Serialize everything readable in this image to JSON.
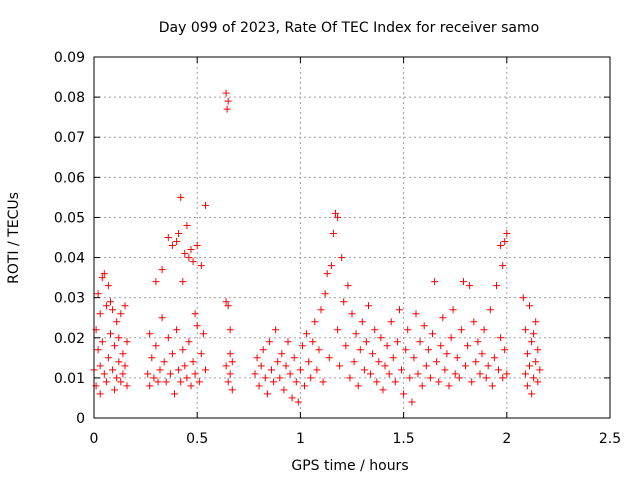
{
  "chart_data": {
    "type": "scatter",
    "title": "Day 099 of 2023, Rate Of TEC Index for receiver samo",
    "xlabel": "GPS time / hours",
    "ylabel": "ROTI / TECUs",
    "xlim": [
      0,
      2.5
    ],
    "ylim": [
      0,
      0.09
    ],
    "xticks": [
      0,
      0.5,
      1,
      1.5,
      2,
      2.5
    ],
    "xtick_labels": [
      "0",
      "0.5",
      "1",
      "1.5",
      "2",
      "2.5"
    ],
    "yticks": [
      0,
      0.01,
      0.02,
      0.03,
      0.04,
      0.05,
      0.06,
      0.07,
      0.08,
      0.09
    ],
    "ytick_labels": [
      "0",
      "0.01",
      "0.02",
      "0.03",
      "0.04",
      "0.05",
      "0.06",
      "0.07",
      "0.08",
      "0.09"
    ],
    "grid": true,
    "marker": "+",
    "color": "#ff0000",
    "series": [
      {
        "name": "",
        "points": [
          [
            0.0,
            0.012
          ],
          [
            0.01,
            0.022
          ],
          [
            0.01,
            0.008
          ],
          [
            0.02,
            0.017
          ],
          [
            0.02,
            0.031
          ],
          [
            0.03,
            0.013
          ],
          [
            0.03,
            0.026
          ],
          [
            0.03,
            0.006
          ],
          [
            0.04,
            0.035
          ],
          [
            0.04,
            0.019
          ],
          [
            0.05,
            0.011
          ],
          [
            0.05,
            0.036
          ],
          [
            0.06,
            0.028
          ],
          [
            0.06,
            0.009
          ],
          [
            0.07,
            0.033
          ],
          [
            0.07,
            0.015
          ],
          [
            0.08,
            0.029
          ],
          [
            0.08,
            0.021
          ],
          [
            0.09,
            0.012
          ],
          [
            0.09,
            0.027
          ],
          [
            0.1,
            0.007
          ],
          [
            0.1,
            0.018
          ],
          [
            0.11,
            0.024
          ],
          [
            0.11,
            0.01
          ],
          [
            0.12,
            0.014
          ],
          [
            0.12,
            0.02
          ],
          [
            0.13,
            0.026
          ],
          [
            0.13,
            0.009
          ],
          [
            0.14,
            0.016
          ],
          [
            0.14,
            0.011
          ],
          [
            0.15,
            0.028
          ],
          [
            0.15,
            0.013
          ],
          [
            0.16,
            0.008
          ],
          [
            0.16,
            0.019
          ],
          [
            0.26,
            0.011
          ],
          [
            0.27,
            0.021
          ],
          [
            0.27,
            0.008
          ],
          [
            0.28,
            0.015
          ],
          [
            0.29,
            0.01
          ],
          [
            0.3,
            0.034
          ],
          [
            0.3,
            0.018
          ],
          [
            0.31,
            0.009
          ],
          [
            0.32,
            0.012
          ],
          [
            0.33,
            0.025
          ],
          [
            0.33,
            0.037
          ],
          [
            0.34,
            0.014
          ],
          [
            0.35,
            0.009
          ],
          [
            0.36,
            0.02
          ],
          [
            0.36,
            0.045
          ],
          [
            0.37,
            0.011
          ],
          [
            0.38,
            0.043
          ],
          [
            0.38,
            0.016
          ],
          [
            0.39,
            0.006
          ],
          [
            0.4,
            0.044
          ],
          [
            0.4,
            0.022
          ],
          [
            0.41,
            0.012
          ],
          [
            0.41,
            0.046
          ],
          [
            0.42,
            0.055
          ],
          [
            0.42,
            0.009
          ],
          [
            0.43,
            0.017
          ],
          [
            0.43,
            0.034
          ],
          [
            0.44,
            0.041
          ],
          [
            0.44,
            0.013
          ],
          [
            0.45,
            0.048
          ],
          [
            0.45,
            0.01
          ],
          [
            0.46,
            0.04
          ],
          [
            0.46,
            0.019
          ],
          [
            0.47,
            0.008
          ],
          [
            0.47,
            0.042
          ],
          [
            0.48,
            0.014
          ],
          [
            0.48,
            0.039
          ],
          [
            0.49,
            0.026
          ],
          [
            0.49,
            0.011
          ],
          [
            0.5,
            0.023
          ],
          [
            0.5,
            0.043
          ],
          [
            0.51,
            0.009
          ],
          [
            0.52,
            0.016
          ],
          [
            0.52,
            0.038
          ],
          [
            0.53,
            0.021
          ],
          [
            0.54,
            0.053
          ],
          [
            0.54,
            0.012
          ],
          [
            0.64,
            0.081
          ],
          [
            0.645,
            0.077
          ],
          [
            0.65,
            0.079
          ],
          [
            0.64,
            0.029
          ],
          [
            0.65,
            0.028
          ],
          [
            0.66,
            0.022
          ],
          [
            0.64,
            0.013
          ],
          [
            0.65,
            0.009
          ],
          [
            0.66,
            0.016
          ],
          [
            0.67,
            0.007
          ],
          [
            0.66,
            0.011
          ],
          [
            0.67,
            0.014
          ],
          [
            0.78,
            0.011
          ],
          [
            0.79,
            0.015
          ],
          [
            0.8,
            0.008
          ],
          [
            0.81,
            0.013
          ],
          [
            0.82,
            0.017
          ],
          [
            0.83,
            0.01
          ],
          [
            0.84,
            0.006
          ],
          [
            0.85,
            0.019
          ],
          [
            0.86,
            0.012
          ],
          [
            0.87,
            0.009
          ],
          [
            0.88,
            0.022
          ],
          [
            0.89,
            0.014
          ],
          [
            0.9,
            0.01
          ],
          [
            0.91,
            0.016
          ],
          [
            0.92,
            0.007
          ],
          [
            0.93,
            0.013
          ],
          [
            0.94,
            0.019
          ],
          [
            0.95,
            0.011
          ],
          [
            0.96,
            0.005
          ],
          [
            0.97,
            0.015
          ],
          [
            0.98,
            0.009
          ],
          [
            0.99,
            0.004
          ],
          [
            1.0,
            0.012
          ],
          [
            1.01,
            0.018
          ],
          [
            1.02,
            0.008
          ],
          [
            1.03,
            0.021
          ],
          [
            1.04,
            0.014
          ],
          [
            1.05,
            0.01
          ],
          [
            1.06,
            0.019
          ],
          [
            1.07,
            0.024
          ],
          [
            1.08,
            0.012
          ],
          [
            1.09,
            0.017
          ],
          [
            1.1,
            0.027
          ],
          [
            1.11,
            0.009
          ],
          [
            1.12,
            0.031
          ],
          [
            1.13,
            0.036
          ],
          [
            1.14,
            0.015
          ],
          [
            1.15,
            0.038
          ],
          [
            1.16,
            0.046
          ],
          [
            1.17,
            0.051
          ],
          [
            1.18,
            0.05
          ],
          [
            1.18,
            0.022
          ],
          [
            1.19,
            0.013
          ],
          [
            1.2,
            0.04
          ],
          [
            1.21,
            0.029
          ],
          [
            1.22,
            0.018
          ],
          [
            1.23,
            0.033
          ],
          [
            1.24,
            0.01
          ],
          [
            1.25,
            0.026
          ],
          [
            1.26,
            0.014
          ],
          [
            1.27,
            0.021
          ],
          [
            1.28,
            0.008
          ],
          [
            1.29,
            0.017
          ],
          [
            1.3,
            0.024
          ],
          [
            1.31,
            0.012
          ],
          [
            1.32,
            0.019
          ],
          [
            1.33,
            0.028
          ],
          [
            1.34,
            0.011
          ],
          [
            1.35,
            0.016
          ],
          [
            1.36,
            0.022
          ],
          [
            1.37,
            0.009
          ],
          [
            1.38,
            0.014
          ],
          [
            1.39,
            0.02
          ],
          [
            1.4,
            0.007
          ],
          [
            1.41,
            0.013
          ],
          [
            1.42,
            0.018
          ],
          [
            1.43,
            0.011
          ],
          [
            1.44,
            0.024
          ],
          [
            1.45,
            0.015
          ],
          [
            1.46,
            0.009
          ],
          [
            1.47,
            0.019
          ],
          [
            1.48,
            0.027
          ],
          [
            1.49,
            0.012
          ],
          [
            1.5,
            0.006
          ],
          [
            1.51,
            0.017
          ],
          [
            1.52,
            0.022
          ],
          [
            1.53,
            0.01
          ],
          [
            1.54,
            0.004
          ],
          [
            1.55,
            0.015
          ],
          [
            1.56,
            0.026
          ],
          [
            1.57,
            0.011
          ],
          [
            1.58,
            0.019
          ],
          [
            1.59,
            0.008
          ],
          [
            1.6,
            0.023
          ],
          [
            1.61,
            0.013
          ],
          [
            1.62,
            0.017
          ],
          [
            1.63,
            0.01
          ],
          [
            1.64,
            0.021
          ],
          [
            1.65,
            0.034
          ],
          [
            1.66,
            0.014
          ],
          [
            1.67,
            0.009
          ],
          [
            1.68,
            0.018
          ],
          [
            1.69,
            0.025
          ],
          [
            1.7,
            0.012
          ],
          [
            1.71,
            0.016
          ],
          [
            1.72,
            0.008
          ],
          [
            1.73,
            0.02
          ],
          [
            1.74,
            0.027
          ],
          [
            1.75,
            0.011
          ],
          [
            1.76,
            0.015
          ],
          [
            1.77,
            0.01
          ],
          [
            1.78,
            0.022
          ],
          [
            1.79,
            0.034
          ],
          [
            1.8,
            0.013
          ],
          [
            1.81,
            0.018
          ],
          [
            1.82,
            0.033
          ],
          [
            1.83,
            0.009
          ],
          [
            1.84,
            0.024
          ],
          [
            1.85,
            0.014
          ],
          [
            1.86,
            0.019
          ],
          [
            1.87,
            0.011
          ],
          [
            1.88,
            0.016
          ],
          [
            1.89,
            0.022
          ],
          [
            1.9,
            0.01
          ],
          [
            1.91,
            0.013
          ],
          [
            1.92,
            0.027
          ],
          [
            1.93,
            0.008
          ],
          [
            1.94,
            0.015
          ],
          [
            1.95,
            0.033
          ],
          [
            1.96,
            0.012
          ],
          [
            1.97,
            0.02
          ],
          [
            1.97,
            0.043
          ],
          [
            1.98,
            0.038
          ],
          [
            1.98,
            0.01
          ],
          [
            1.99,
            0.044
          ],
          [
            1.99,
            0.017
          ],
          [
            2.0,
            0.011
          ],
          [
            2.0,
            0.046
          ],
          [
            2.08,
            0.03
          ],
          [
            2.09,
            0.022
          ],
          [
            2.09,
            0.011
          ],
          [
            2.1,
            0.016
          ],
          [
            2.1,
            0.008
          ],
          [
            2.11,
            0.028
          ],
          [
            2.11,
            0.013
          ],
          [
            2.12,
            0.019
          ],
          [
            2.12,
            0.006
          ],
          [
            2.13,
            0.021
          ],
          [
            2.13,
            0.01
          ],
          [
            2.14,
            0.014
          ],
          [
            2.14,
            0.024
          ],
          [
            2.15,
            0.009
          ],
          [
            2.15,
            0.017
          ],
          [
            2.16,
            0.012
          ]
        ]
      }
    ]
  }
}
